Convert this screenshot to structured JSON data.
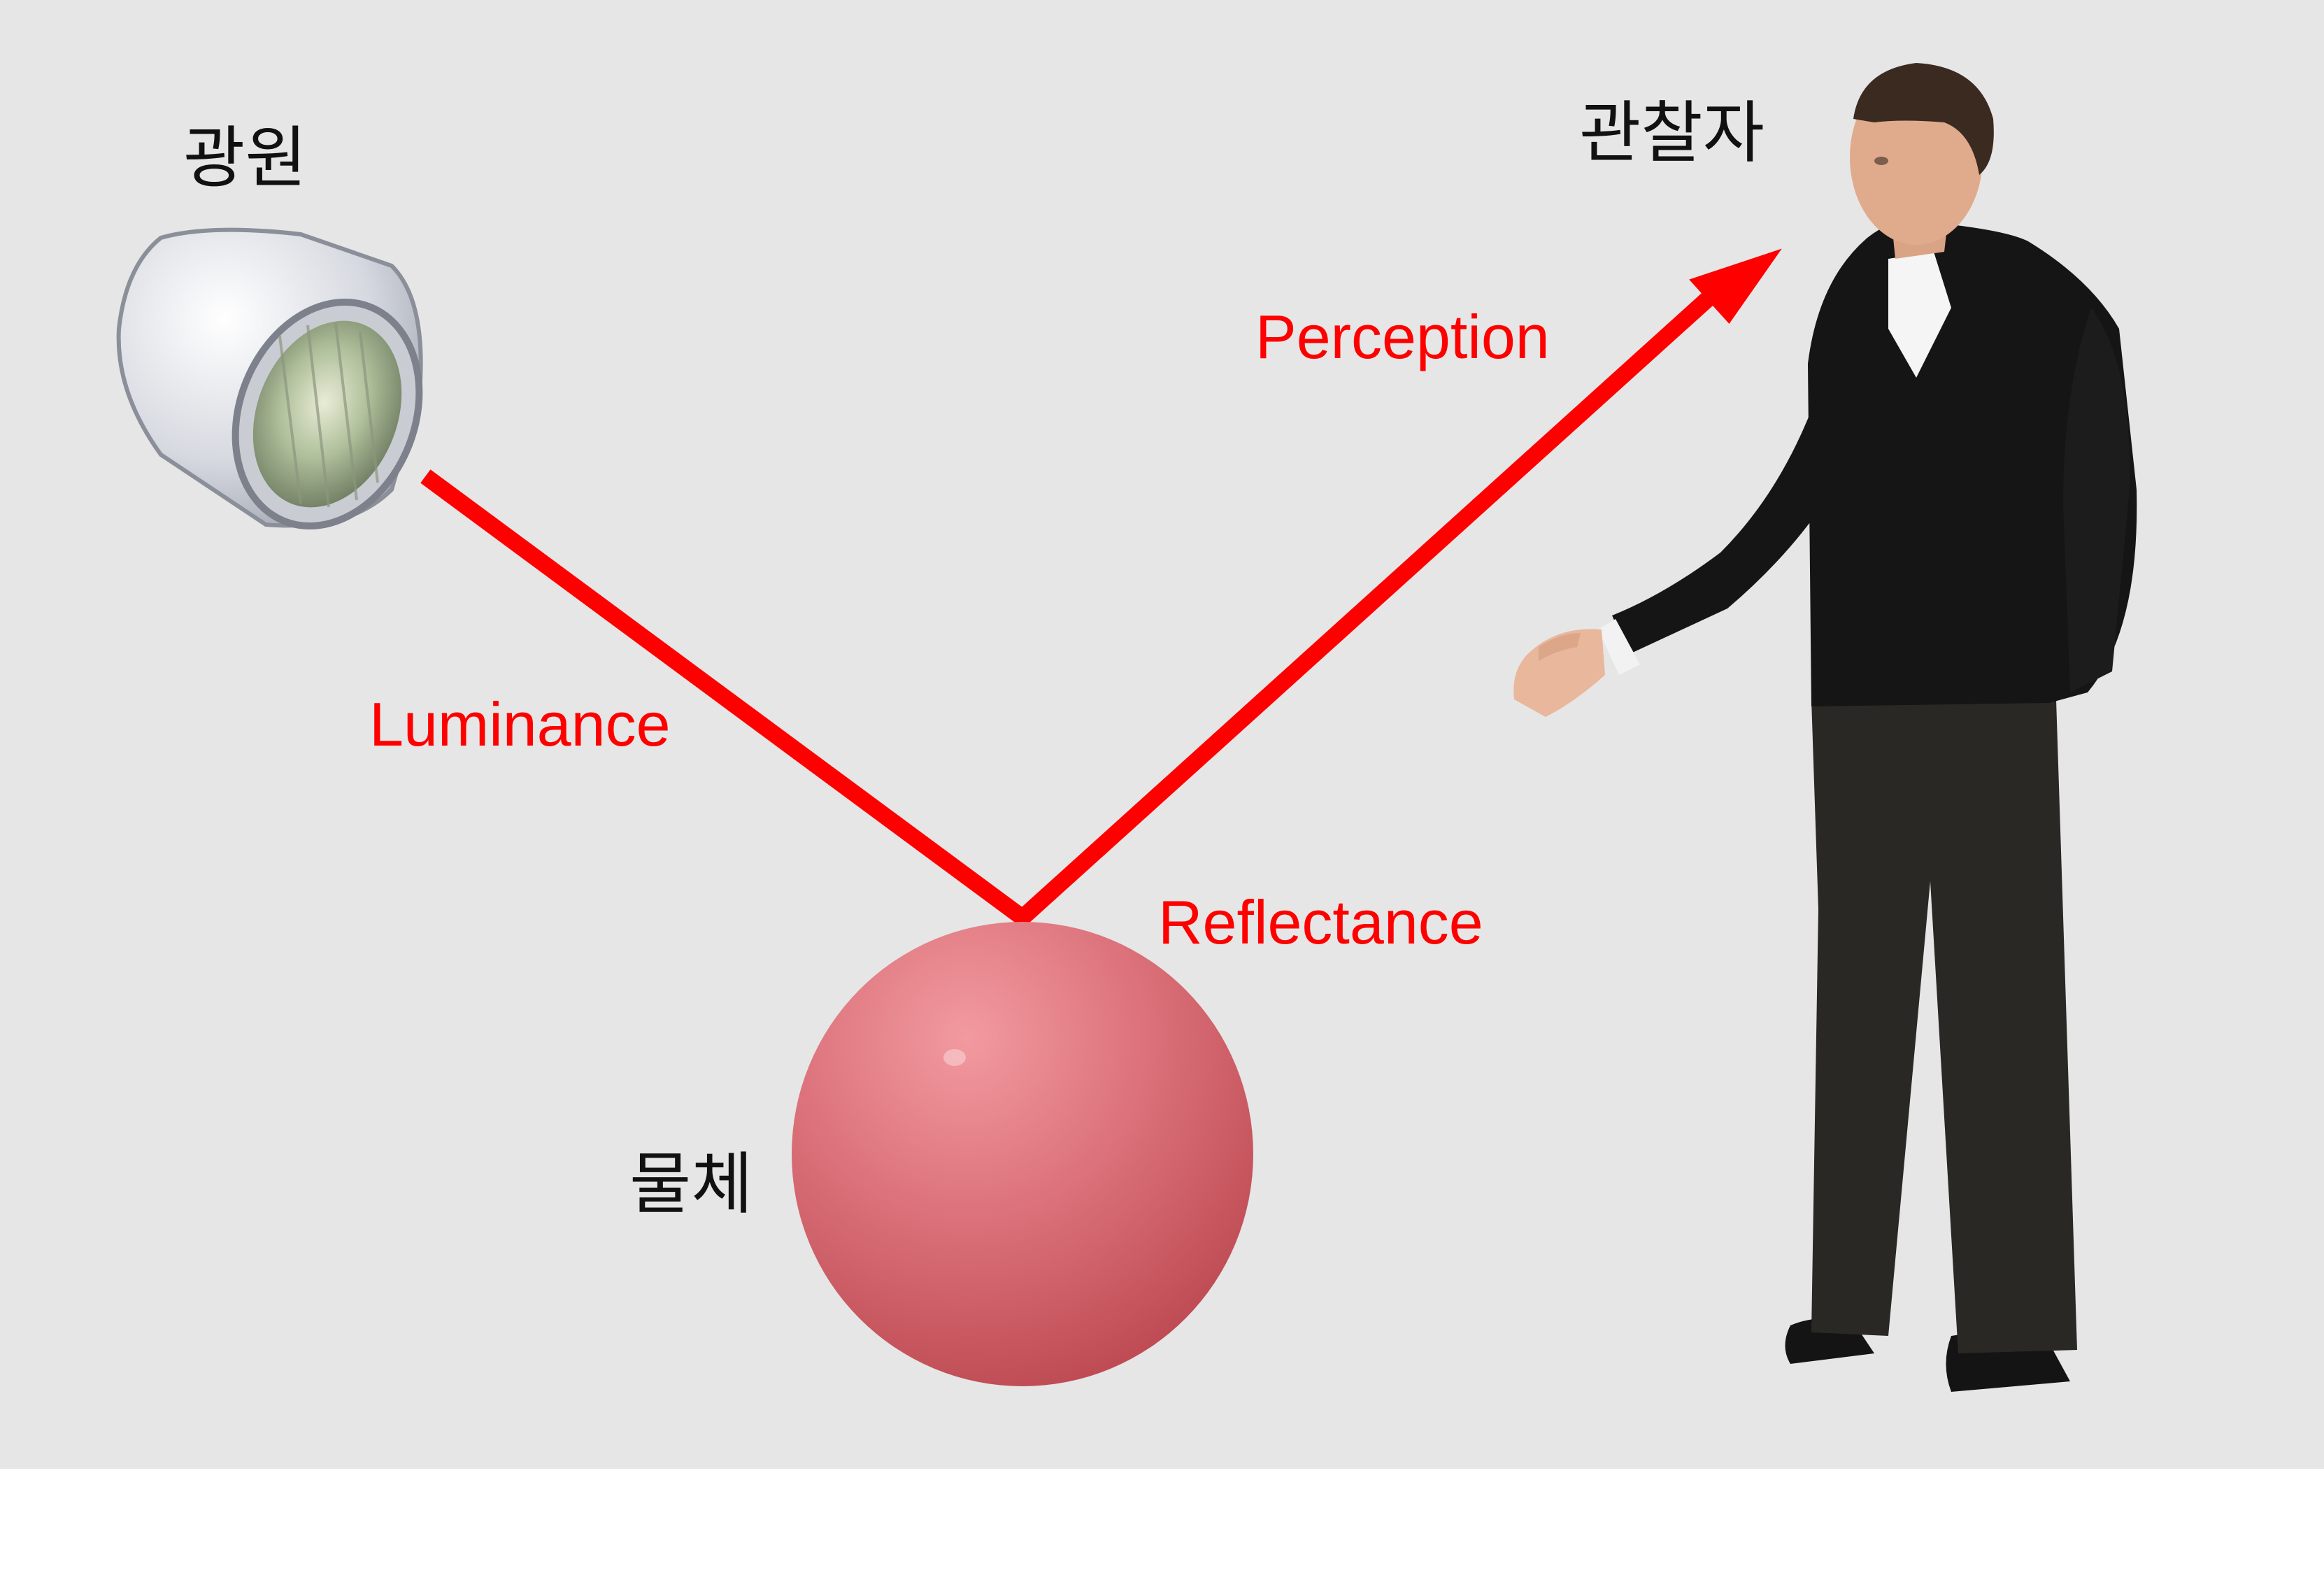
{
  "labels": {
    "light_source": "광원",
    "observer": "관찰자",
    "object": "물체",
    "luminance": "Luminance",
    "reflectance": "Reflectance",
    "perception": "Perception"
  },
  "colors": {
    "background": "#e6e6e6",
    "arrow": "#ff0000",
    "sphere": "#d9636b",
    "label_text": "#111111",
    "term_text": "#ff0000"
  },
  "icons": {
    "light_source": "headlamp-icon",
    "object": "sphere-icon",
    "observer": "person-icon"
  }
}
